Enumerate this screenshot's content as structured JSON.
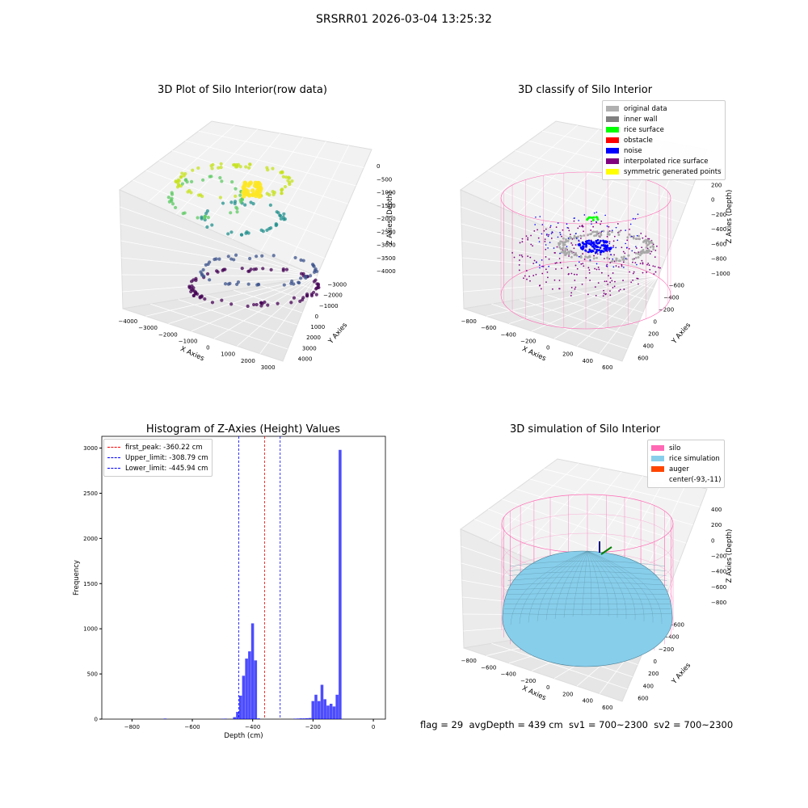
{
  "suptitle": "SRSRR01 2026-03-04 13:25:32",
  "footer": "flag = 29  avgDepth = 439 cm  sv1 = 700~2300  sv2 = 700~2300",
  "panel1": {
    "title": "3D Plot of Silo Interior(row data)",
    "xlabel": "X Axies",
    "ylabel": "Y Axies",
    "zlabel": "Z Axies (Depth)",
    "xticks": [
      "−4000",
      "−3000",
      "−2000",
      "−1000",
      "0",
      "1000",
      "2000",
      "3000"
    ],
    "yticks": [
      "4000",
      "3000",
      "2000",
      "1000",
      "0",
      "−1000",
      "−2000",
      "−3000"
    ],
    "zticks": [
      "0",
      "−500",
      "−1000",
      "−1500",
      "−2000",
      "−2500",
      "−3000",
      "−3500",
      "−4000"
    ]
  },
  "panel2": {
    "title": "3D classify of Silo Interior",
    "xlabel": "X Axies",
    "ylabel": "Y Axies",
    "zlabel": "Z Axies (Depth)",
    "xticks": [
      "−800",
      "−600",
      "−400",
      "−200",
      "0",
      "200",
      "400",
      "600"
    ],
    "yticks": [
      "600",
      "400",
      "200",
      "0",
      "−200",
      "−400",
      "−600"
    ],
    "zticks": [
      "400",
      "200",
      "0",
      "−200",
      "−400",
      "−600",
      "−800",
      "−1000"
    ],
    "legend": [
      {
        "label": "original data",
        "color": "#b0b0b0"
      },
      {
        "label": "inner wall",
        "color": "#808080"
      },
      {
        "label": "rice surface",
        "color": "#00ff00"
      },
      {
        "label": "obstacle",
        "color": "#ff0000"
      },
      {
        "label": "noise",
        "color": "#0000ff"
      },
      {
        "label": "interpolated rice surface",
        "color": "#800080"
      },
      {
        "label": "symmetric generated points",
        "color": "#ffff00"
      }
    ]
  },
  "panel4": {
    "title": "3D simulation of Silo Interior",
    "xlabel": "X Axies",
    "ylabel": "Y Axies",
    "zlabel": "Z Axies (Depth)",
    "xticks": [
      "−800",
      "−600",
      "−400",
      "−200",
      "0",
      "200",
      "400",
      "600"
    ],
    "yticks": [
      "600",
      "400",
      "200",
      "0",
      "−200",
      "−400",
      "−600"
    ],
    "zticks": [
      "400",
      "200",
      "0",
      "−200",
      "−400",
      "−600",
      "−800"
    ],
    "legend": [
      {
        "label": "silo",
        "color": "#ff69b4"
      },
      {
        "label": "rice simulation",
        "color": "#87ceeb"
      },
      {
        "label": "auger",
        "color": "#ff4500"
      },
      {
        "label": "center(-93,-11)",
        "color": "#ffffff"
      }
    ]
  },
  "chart_data": {
    "type": "bar",
    "title": "Histogram of Z-Axies (Height) Values",
    "xlabel": "Depth (cm)",
    "ylabel": "Frequency",
    "xlim": [
      -900,
      40
    ],
    "ylim": [
      0,
      3130
    ],
    "xticks": [
      -800,
      -600,
      -400,
      -200,
      0
    ],
    "yticks": [
      0,
      500,
      1000,
      1500,
      2000,
      2500,
      3000
    ],
    "bin_width": 10,
    "bins": [
      {
        "x": -690,
        "y": 6
      },
      {
        "x": -500,
        "y": 3
      },
      {
        "x": -490,
        "y": 5
      },
      {
        "x": -460,
        "y": 22
      },
      {
        "x": -450,
        "y": 80
      },
      {
        "x": -440,
        "y": 260
      },
      {
        "x": -430,
        "y": 480
      },
      {
        "x": -420,
        "y": 670
      },
      {
        "x": -410,
        "y": 750
      },
      {
        "x": -400,
        "y": 1060
      },
      {
        "x": -390,
        "y": 650
      },
      {
        "x": -380,
        "y": 8
      },
      {
        "x": -260,
        "y": 5
      },
      {
        "x": -250,
        "y": 6
      },
      {
        "x": -240,
        "y": 8
      },
      {
        "x": -230,
        "y": 8
      },
      {
        "x": -220,
        "y": 10
      },
      {
        "x": -210,
        "y": 12
      },
      {
        "x": -200,
        "y": 200
      },
      {
        "x": -190,
        "y": 270
      },
      {
        "x": -180,
        "y": 200
      },
      {
        "x": -170,
        "y": 380
      },
      {
        "x": -160,
        "y": 220
      },
      {
        "x": -150,
        "y": 150
      },
      {
        "x": -140,
        "y": 170
      },
      {
        "x": -130,
        "y": 140
      },
      {
        "x": -120,
        "y": 270
      },
      {
        "x": -110,
        "y": 2980
      }
    ],
    "bar_color": "#0000ff",
    "lines": [
      {
        "label": "first_peak: -360.22 cm",
        "x": -360.22,
        "color": "#ff0000"
      },
      {
        "label": "Upper_limit: -308.79 cm",
        "x": -308.79,
        "color": "#0000ff"
      },
      {
        "label": "Lower_limit: -445.94 cm",
        "x": -445.94,
        "color": "#0000ff"
      }
    ],
    "legend_position": "upper-left"
  }
}
